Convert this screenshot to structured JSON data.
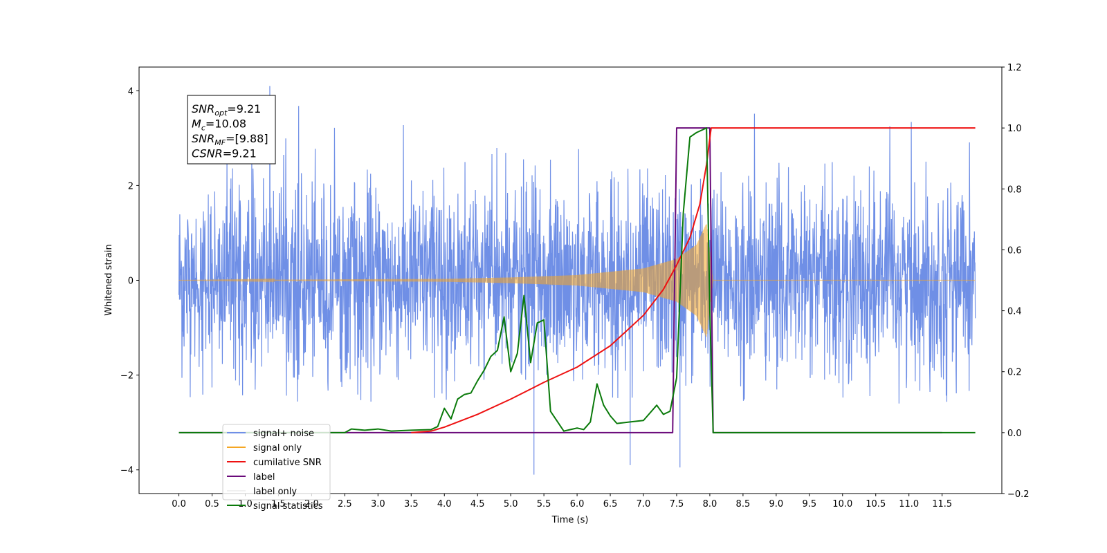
{
  "chart_data": {
    "type": "line",
    "title": "",
    "xlabel": "Time (s)",
    "ylabel_left": "Whitened strain",
    "ylabel_right": "",
    "xlim": [
      -0.6,
      12.4
    ],
    "ylim_left": [
      -4.5,
      4.5
    ],
    "ylim_right": [
      -0.2,
      1.2
    ],
    "x_ticks": [
      0.0,
      0.5,
      1.0,
      1.5,
      2.0,
      2.5,
      3.0,
      3.5,
      4.0,
      4.5,
      5.0,
      5.5,
      6.0,
      6.5,
      7.0,
      7.5,
      8.0,
      8.5,
      9.0,
      9.5,
      10.0,
      10.5,
      11.0,
      11.5
    ],
    "x_tick_labels": [
      "0.0",
      "0.5",
      "1.0",
      "1.5",
      "2.0",
      "2.5",
      "3.0",
      "3.5",
      "4.0",
      "4.5",
      "5.0",
      "5.5",
      "6.0",
      "6.5",
      "7.0",
      "7.5",
      "8.0",
      "8.5",
      "9.0",
      "9.5",
      "10.0",
      "10.5",
      "11.0",
      "11.5"
    ],
    "y_ticks_left": [
      -4,
      -2,
      0,
      2,
      4
    ],
    "y_tick_labels_left": [
      "−4",
      "−2",
      "0",
      "2",
      "4"
    ],
    "y_ticks_right": [
      -0.2,
      0.0,
      0.2,
      0.4,
      0.6,
      0.8,
      1.0,
      1.2
    ],
    "y_tick_labels_right": [
      "−0.2",
      "0.0",
      "0.2",
      "0.4",
      "0.6",
      "0.8",
      "1.0",
      "1.2"
    ],
    "grid": false,
    "legend_position": "lower-left",
    "series": [
      {
        "name": "signal+ noise",
        "axis": "left",
        "color": "#6f8fe6",
        "style": "noise",
        "x_range": [
          0.0,
          12.0
        ],
        "amplitude_envelope": [
          -2.6,
          3.7
        ],
        "peak_values": [
          [
            1.37,
            4.1
          ],
          [
            5.35,
            -4.1
          ],
          [
            7.55,
            -3.95
          ],
          [
            6.8,
            -3.9
          ]
        ]
      },
      {
        "name": "signal only",
        "axis": "left",
        "color": "#f5a623",
        "style": "chirp",
        "x_range": [
          0.0,
          12.0
        ],
        "merger_time": 7.95,
        "ringdown_end": 8.05,
        "amplitude_points": [
          [
            0.0,
            0.0
          ],
          [
            4.0,
            0.03
          ],
          [
            5.0,
            0.06
          ],
          [
            6.0,
            0.11
          ],
          [
            7.0,
            0.25
          ],
          [
            7.5,
            0.45
          ],
          [
            7.8,
            0.75
          ],
          [
            7.95,
            1.2
          ]
        ]
      },
      {
        "name": "cumilative SNR",
        "axis": "right",
        "color": "#ee1111",
        "points": [
          [
            3.5,
            0.0
          ],
          [
            3.8,
            0.005
          ],
          [
            4.0,
            0.018
          ],
          [
            4.5,
            0.06
          ],
          [
            5.0,
            0.11
          ],
          [
            5.5,
            0.165
          ],
          [
            6.0,
            0.215
          ],
          [
            6.5,
            0.285
          ],
          [
            7.0,
            0.385
          ],
          [
            7.3,
            0.47
          ],
          [
            7.5,
            0.55
          ],
          [
            7.7,
            0.64
          ],
          [
            7.85,
            0.75
          ],
          [
            7.95,
            0.88
          ],
          [
            8.02,
            1.0
          ],
          [
            12.0,
            1.0
          ]
        ]
      },
      {
        "name": "label",
        "axis": "right",
        "color": "#6a0a7a",
        "points": [
          [
            0.0,
            0.0
          ],
          [
            7.44,
            0.0
          ],
          [
            7.5,
            1.0
          ],
          [
            8.0,
            1.0
          ],
          [
            8.05,
            0.0
          ],
          [
            11.5,
            0.0
          ]
        ]
      },
      {
        "name": "label only",
        "axis": "right",
        "color": "#f0f0f0",
        "points": []
      },
      {
        "name": "signal statistics",
        "axis": "right",
        "color": "#0a7a0a",
        "points": [
          [
            0.0,
            0.0
          ],
          [
            2.5,
            0.0
          ],
          [
            2.6,
            0.012
          ],
          [
            2.8,
            0.008
          ],
          [
            3.0,
            0.012
          ],
          [
            3.2,
            0.005
          ],
          [
            3.5,
            0.008
          ],
          [
            3.8,
            0.01
          ],
          [
            3.9,
            0.02
          ],
          [
            4.0,
            0.08
          ],
          [
            4.1,
            0.045
          ],
          [
            4.2,
            0.11
          ],
          [
            4.3,
            0.125
          ],
          [
            4.4,
            0.13
          ],
          [
            4.5,
            0.17
          ],
          [
            4.6,
            0.205
          ],
          [
            4.7,
            0.25
          ],
          [
            4.8,
            0.27
          ],
          [
            4.9,
            0.38
          ],
          [
            5.0,
            0.2
          ],
          [
            5.1,
            0.26
          ],
          [
            5.2,
            0.45
          ],
          [
            5.3,
            0.23
          ],
          [
            5.4,
            0.36
          ],
          [
            5.5,
            0.37
          ],
          [
            5.6,
            0.07
          ],
          [
            5.8,
            0.005
          ],
          [
            6.0,
            0.015
          ],
          [
            6.1,
            0.01
          ],
          [
            6.2,
            0.035
          ],
          [
            6.3,
            0.16
          ],
          [
            6.4,
            0.09
          ],
          [
            6.5,
            0.055
          ],
          [
            6.6,
            0.03
          ],
          [
            6.8,
            0.035
          ],
          [
            7.0,
            0.04
          ],
          [
            7.2,
            0.09
          ],
          [
            7.3,
            0.06
          ],
          [
            7.4,
            0.07
          ],
          [
            7.5,
            0.18
          ],
          [
            7.6,
            0.72
          ],
          [
            7.7,
            0.97
          ],
          [
            7.8,
            0.985
          ],
          [
            7.9,
            0.995
          ],
          [
            7.95,
            1.0
          ],
          [
            8.0,
            0.4
          ],
          [
            8.05,
            0.0
          ],
          [
            12.0,
            0.0
          ]
        ]
      }
    ]
  },
  "annotation": {
    "lines": [
      {
        "base": "SNR",
        "sub": "opt",
        "rest": "=9.21"
      },
      {
        "base": "M",
        "sub": "c",
        "rest": "=10.08"
      },
      {
        "base": "SNR",
        "sub": "MF",
        "rest": "=[9.88]"
      },
      {
        "base": "CSNR",
        "sub": "",
        "rest": "=9.21"
      }
    ]
  }
}
